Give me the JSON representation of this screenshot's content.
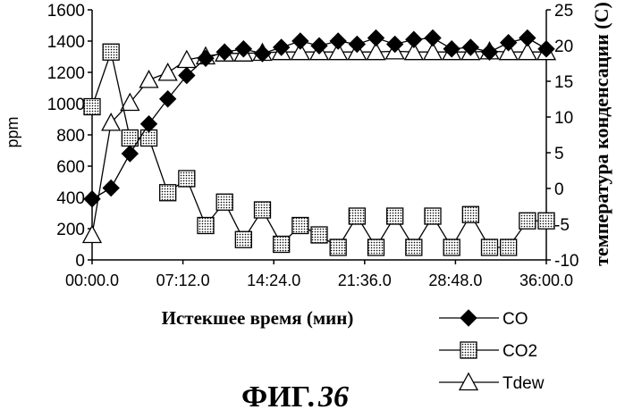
{
  "figure": {
    "label": "ФИГ.",
    "number": "36"
  },
  "colors": {
    "ink": "#000000",
    "background": "#ffffff",
    "fill_light": "#ffffff",
    "fill_dark": "#000000"
  },
  "chart_data": {
    "type": "line",
    "title": "",
    "xlabel": "Истекшее время (мин)",
    "ylabel": "ppm",
    "y2label": "температура конденсации (C)",
    "x_ticks": [
      "00:00.0",
      "07:12.0",
      "14:24.0",
      "21:36.0",
      "28:48.0",
      "36:00.0"
    ],
    "xlim": [
      0,
      2160
    ],
    "ylim": [
      0,
      1600
    ],
    "y_ticks": [
      0,
      200,
      400,
      600,
      800,
      1000,
      1200,
      1400,
      1600
    ],
    "y2lim": [
      -10,
      25
    ],
    "y2_ticks": [
      -10,
      -5,
      0,
      5,
      10,
      15,
      20,
      25
    ],
    "grid": false,
    "legend_position": "bottom-right",
    "series": [
      {
        "name": "CO",
        "axis": "left",
        "marker": "diamond-filled",
        "x": [
          0,
          90,
          180,
          270,
          360,
          450,
          540,
          630,
          720,
          810,
          900,
          990,
          1080,
          1170,
          1260,
          1350,
          1440,
          1530,
          1620,
          1710,
          1800,
          1890,
          1980,
          2070,
          2160
        ],
        "values": [
          390,
          460,
          680,
          870,
          1030,
          1180,
          1290,
          1330,
          1350,
          1320,
          1360,
          1400,
          1370,
          1400,
          1380,
          1420,
          1380,
          1410,
          1420,
          1350,
          1360,
          1330,
          1390,
          1420,
          1350
        ]
      },
      {
        "name": "CO2",
        "axis": "left",
        "marker": "square-dotted",
        "x": [
          0,
          90,
          180,
          270,
          360,
          450,
          540,
          630,
          720,
          810,
          900,
          990,
          1080,
          1170,
          1260,
          1350,
          1440,
          1530,
          1620,
          1710,
          1800,
          1890,
          1980,
          2070,
          2160
        ],
        "values": [
          980,
          1330,
          780,
          780,
          430,
          520,
          220,
          370,
          130,
          320,
          100,
          220,
          160,
          80,
          280,
          80,
          280,
          80,
          280,
          80,
          290,
          80,
          80,
          250,
          250
        ]
      },
      {
        "name": "Tdew",
        "axis": "right",
        "marker": "triangle-open",
        "x": [
          0,
          90,
          180,
          270,
          360,
          450,
          540,
          630,
          720,
          810,
          900,
          990,
          1080,
          1170,
          1260,
          1350,
          1440,
          1530,
          1620,
          1710,
          1800,
          1890,
          1980,
          2070,
          2160
        ],
        "values": [
          -6.5,
          9.2,
          12.0,
          15.2,
          16.2,
          18.0,
          18.5,
          18.9,
          18.9,
          19.0,
          19.1,
          19.1,
          19.1,
          19.1,
          19.1,
          19.1,
          19.2,
          19.1,
          19.1,
          19.1,
          19.1,
          19.2,
          19.1,
          19.1,
          19.1
        ]
      }
    ]
  }
}
